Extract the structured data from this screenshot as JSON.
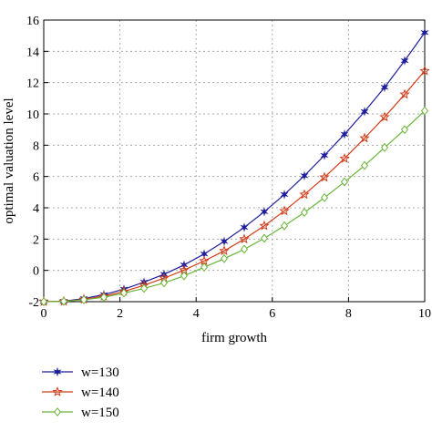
{
  "chart_data": {
    "type": "line",
    "title": "",
    "xlabel": "firm growth",
    "ylabel": "optimal valuation level",
    "xlim": [
      0,
      10
    ],
    "ylim": [
      -2,
      16
    ],
    "xticks": [
      0,
      2,
      4,
      6,
      8,
      10
    ],
    "yticks": [
      -2,
      0,
      2,
      4,
      6,
      8,
      10,
      12,
      14,
      16
    ],
    "xtick_labels": [
      "0",
      "2",
      "4",
      "6",
      "8",
      "10"
    ],
    "ytick_labels": [
      "-2",
      "0",
      "2",
      "4",
      "6",
      "8",
      "10",
      "12",
      "14",
      "16"
    ],
    "grid": true,
    "legend_position": "below plot, left",
    "x": [
      0,
      0.526,
      1.053,
      1.579,
      2.105,
      2.632,
      3.158,
      3.684,
      4.211,
      4.737,
      5.263,
      5.789,
      6.316,
      6.842,
      7.368,
      7.895,
      8.421,
      8.947,
      9.474,
      10
    ],
    "series": [
      {
        "name": "w=130",
        "color": "#1f1f9e",
        "marker": "star",
        "values": [
          -2.0,
          -1.97,
          -1.8,
          -1.55,
          -1.2,
          -0.75,
          -0.25,
          0.35,
          1.05,
          1.85,
          2.75,
          3.75,
          4.85,
          6.05,
          7.35,
          8.7,
          10.15,
          11.7,
          13.4,
          15.2
        ]
      },
      {
        "name": "w=140",
        "color": "#d23a16",
        "marker": "pentagram",
        "values": [
          -2.0,
          -1.98,
          -1.85,
          -1.65,
          -1.35,
          -0.95,
          -0.5,
          0.02,
          0.6,
          1.25,
          2.0,
          2.85,
          3.8,
          4.85,
          5.95,
          7.15,
          8.45,
          9.8,
          11.25,
          12.75
        ]
      },
      {
        "name": "w=150",
        "color": "#6ab53a",
        "marker": "diamond",
        "values": [
          -2.0,
          -1.98,
          -1.88,
          -1.72,
          -1.45,
          -1.15,
          -0.8,
          -0.35,
          0.2,
          0.75,
          1.35,
          2.05,
          2.85,
          3.7,
          4.65,
          5.65,
          6.7,
          7.85,
          9.0,
          10.2
        ]
      }
    ]
  }
}
